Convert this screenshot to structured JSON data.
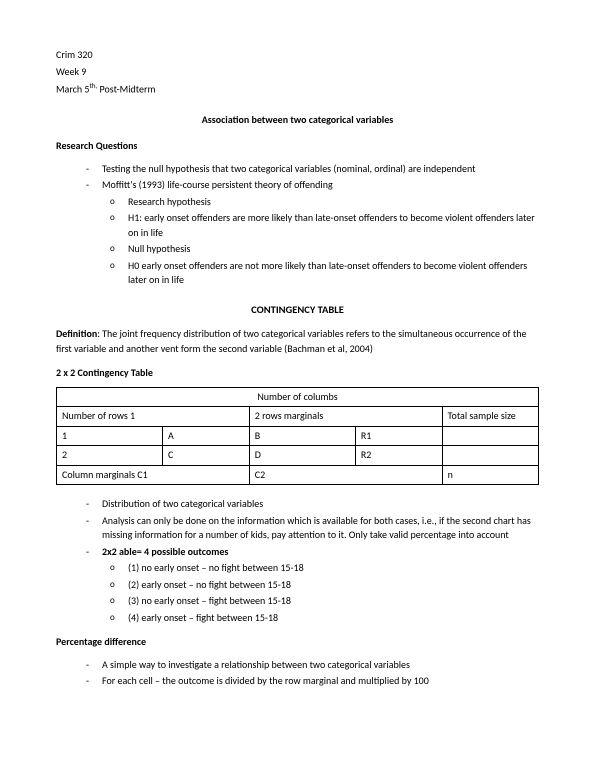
{
  "header": {
    "line1": "Crim 320",
    "line2": "Week 9",
    "line3_pre": "March 5",
    "line3_sup": "th,",
    "line3_post": " Post-Midterm"
  },
  "title": "Association between two categorical variables",
  "sections": {
    "research_q": {
      "heading": "Research Questions",
      "bullets": [
        "Testing the null hypothesis that two categorical variables (nominal, ordinal) are independent",
        "Moffitt's (1993) life-course persistent theory of offending"
      ],
      "sub_bullets": [
        "Research hypothesis",
        "H1: early onset offenders are more likely than late-onset offenders to become violent offenders later on in life",
        "Null hypothesis",
        "H0 early onset offenders are not more likely than late-onset offenders to become violent offenders later on in life"
      ]
    },
    "contingency_title": "CONTINGENCY TABLE",
    "definition": {
      "label": "Definition",
      "text": ": The joint frequency distribution of two categorical variables refers to the simultaneous occurrence of the first variable and another vent form the second variable (Bachman et al, 2004)"
    },
    "table_head": "2 x 2 Contingency Table",
    "table": {
      "top": "Number of columbs",
      "r1c1": "Number of rows 1",
      "r1c2": "2 rows marginals",
      "r1c3": "Total sample size",
      "r2": [
        "1",
        "A",
        "B",
        "R1",
        ""
      ],
      "r3": [
        "2",
        "C",
        "D",
        "R2",
        ""
      ],
      "r4c1": "Column marginals C1",
      "r4c2": "C2",
      "r4c3": "n"
    },
    "post_table": {
      "bullets": [
        "Distribution of two categorical variables",
        "Analysis can only be done on the information which is available for both cases, i.e., if the second chart has missing information for a number of kids, pay attention to it. Only take valid percentage into account"
      ],
      "bold_bullet": "2x2 able= 4 possible outcomes",
      "sub_bullets": [
        "(1)  no early onset – no fight between 15-18",
        "(2)  early onset – no fight between 15-18",
        "(3) no early onset – fight between 15-18",
        "(4)  early onset – fight between 15-18"
      ]
    },
    "pct_diff": {
      "heading": "Percentage difference",
      "bullets": [
        "A simple way to investigate a relationship between two categorical variables",
        "For each cell – the outcome is divided by the row marginal and multiplied by 100"
      ]
    }
  }
}
